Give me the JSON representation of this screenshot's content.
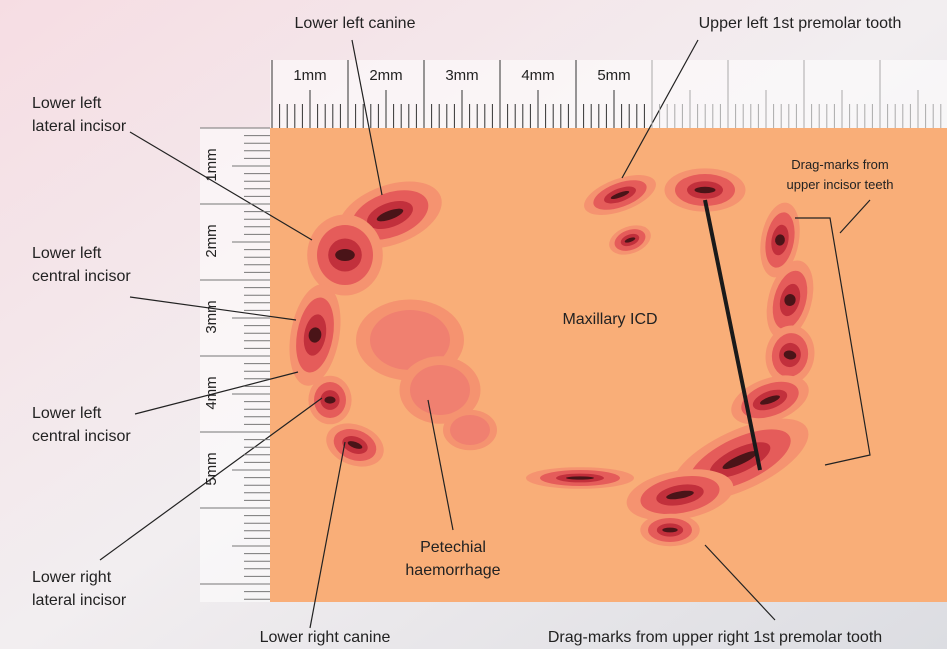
{
  "ruler": {
    "top": [
      "1mm",
      "2mm",
      "3mm",
      "4mm",
      "5mm"
    ],
    "left": [
      "1mm",
      "2mm",
      "3mm",
      "4mm",
      "5mm"
    ]
  },
  "center_label": "Maxillary ICD",
  "annotations": [
    {
      "lines": [
        "Lower left canine"
      ]
    },
    {
      "lines": [
        "Upper left 1st premolar tooth"
      ]
    },
    {
      "lines": [
        "Lower left",
        "lateral incisor"
      ]
    },
    {
      "lines": [
        "Lower left",
        "central incisor"
      ]
    },
    {
      "lines": [
        "Lower left",
        "central incisor"
      ]
    },
    {
      "lines": [
        "Lower right",
        "lateral incisor"
      ]
    },
    {
      "lines": [
        "Lower right canine"
      ]
    },
    {
      "lines": [
        "Drag-marks from upper right 1st premolar tooth"
      ]
    },
    {
      "lines": [
        "Petechial",
        "haemorrhage"
      ]
    },
    {
      "lines": [
        "Drag-marks from",
        "upper incisor teeth"
      ]
    }
  ]
}
